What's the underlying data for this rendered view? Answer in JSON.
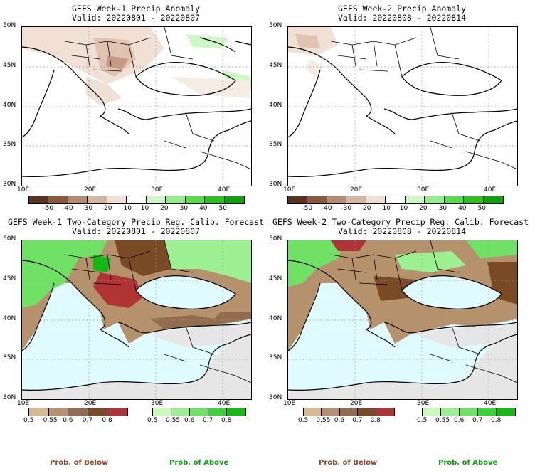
{
  "panels": [
    {
      "title": "GEFS Week-1 Precip Anomaly",
      "valid": "Valid: 20220801 - 20220807"
    },
    {
      "title": "GEFS Week-2 Precip Anomaly",
      "valid": "Valid: 20220808 - 20220814"
    },
    {
      "title": "GEFS Week-1 Two-Category Precip Reg. Calib. Forecast",
      "valid": "Valid: 20220801 - 20220807"
    },
    {
      "title": "GEFS Week-2 Two-Category Precip Reg. Calib. Forecast",
      "valid": "Valid: 20220808 - 20220814"
    }
  ],
  "lat_labels": [
    "50N",
    "45N",
    "40N",
    "35N",
    "30N"
  ],
  "lon_labels": [
    "10E",
    "20E",
    "30E",
    "40E"
  ],
  "anomaly_colorbar": {
    "ticks": [
      "-50",
      "-40",
      "-30",
      "-20",
      "-10",
      "10",
      "20",
      "30",
      "40",
      "50"
    ],
    "colors": [
      "#5a3220",
      "#8b5a3c",
      "#b58a6e",
      "#d8b7a2",
      "#f1e0d6",
      "#ffffff",
      "#cdf7c4",
      "#96ee8a",
      "#56dd49",
      "#2cc121",
      "#10a010"
    ]
  },
  "prob_below_bar": {
    "ticks": [
      "0.5",
      "0.55",
      "0.6",
      "0.7",
      "0.8"
    ],
    "colors": [
      "#d9b98b",
      "#b6926c",
      "#926c4d",
      "#7a4a25",
      "#b13434"
    ]
  },
  "prob_above_bar": {
    "ticks": [
      "0.5",
      "0.55",
      "0.6",
      "0.7",
      "0.8"
    ],
    "colors": [
      "#c8fcb8",
      "#9cf092",
      "#6fe266",
      "#3ad33a",
      "#14b914"
    ]
  },
  "legend": {
    "below": "Prob. of Below",
    "above": "Prob. of Above"
  },
  "colors": {
    "sea": "#dffbff",
    "land_na": "#e6e6e6",
    "below": "#8b5a3c",
    "above": "#4fd64f"
  }
}
